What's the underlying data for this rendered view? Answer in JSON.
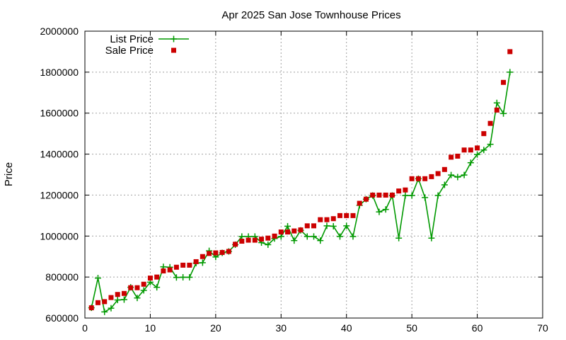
{
  "chart_data": {
    "type": "scatter",
    "title": "Apr 2025 San Jose Townhouse Prices",
    "xlabel": "",
    "ylabel": "Price",
    "xlim": [
      0,
      70
    ],
    "ylim": [
      600000,
      2000000
    ],
    "x_ticks": [
      0,
      10,
      20,
      30,
      40,
      50,
      60,
      70
    ],
    "y_ticks": [
      600000,
      800000,
      1000000,
      1200000,
      1400000,
      1600000,
      1800000,
      2000000
    ],
    "grid": true,
    "legend_position": "top-left",
    "series": [
      {
        "name": "List Price",
        "style": "line-with-plus-markers",
        "color": "#009900",
        "x": [
          1,
          2,
          3,
          4,
          5,
          6,
          7,
          8,
          9,
          10,
          11,
          12,
          13,
          14,
          15,
          16,
          17,
          18,
          19,
          20,
          21,
          22,
          23,
          24,
          25,
          26,
          27,
          28,
          29,
          30,
          31,
          32,
          33,
          34,
          35,
          36,
          37,
          38,
          39,
          40,
          41,
          42,
          43,
          44,
          45,
          46,
          47,
          48,
          49,
          50,
          51,
          52,
          53,
          54,
          55,
          56,
          57,
          58,
          59,
          60,
          61,
          62,
          63,
          64,
          65
        ],
        "y": [
          650000,
          795000,
          630000,
          648000,
          688000,
          690000,
          750000,
          698000,
          735000,
          775000,
          750000,
          850000,
          848000,
          798000,
          799000,
          799000,
          868000,
          870000,
          928000,
          898000,
          918000,
          925000,
          958000,
          998000,
          998000,
          998000,
          968000,
          958000,
          988000,
          998000,
          1048000,
          978000,
          1028000,
          998000,
          998000,
          978000,
          1050000,
          1048000,
          998000,
          1050000,
          998000,
          1150000,
          1180000,
          1198000,
          1118000,
          1130000,
          1198000,
          990000,
          1198000,
          1198000,
          1280000,
          1188000,
          990000,
          1198000,
          1250000,
          1298000,
          1288000,
          1298000,
          1358000,
          1398000,
          1420000,
          1448000,
          1650000,
          1598000,
          1800000
        ]
      },
      {
        "name": "Sale Price",
        "style": "square-markers",
        "color": "#cc0000",
        "x": [
          1,
          2,
          3,
          4,
          5,
          6,
          7,
          8,
          9,
          10,
          11,
          12,
          13,
          14,
          15,
          16,
          17,
          18,
          19,
          20,
          21,
          22,
          23,
          24,
          25,
          26,
          27,
          28,
          29,
          30,
          31,
          32,
          33,
          34,
          35,
          36,
          37,
          38,
          39,
          40,
          41,
          42,
          43,
          44,
          45,
          46,
          47,
          48,
          49,
          50,
          51,
          52,
          53,
          54,
          55,
          56,
          57,
          58,
          59,
          60,
          61,
          62,
          63,
          64,
          65
        ],
        "y": [
          650000,
          675000,
          680000,
          700000,
          715000,
          720000,
          748000,
          748000,
          765000,
          795000,
          800000,
          830000,
          835000,
          848000,
          858000,
          858000,
          875000,
          900000,
          915000,
          918000,
          920000,
          925000,
          960000,
          975000,
          980000,
          980000,
          985000,
          990000,
          1000000,
          1020000,
          1020000,
          1025000,
          1030000,
          1050000,
          1050000,
          1080000,
          1080000,
          1085000,
          1100000,
          1100000,
          1100000,
          1160000,
          1180000,
          1200000,
          1200000,
          1200000,
          1200000,
          1220000,
          1225000,
          1280000,
          1280000,
          1280000,
          1290000,
          1305000,
          1325000,
          1385000,
          1390000,
          1420000,
          1420000,
          1430000,
          1500000,
          1550000,
          1615000,
          1750000,
          1900000
        ]
      }
    ]
  }
}
